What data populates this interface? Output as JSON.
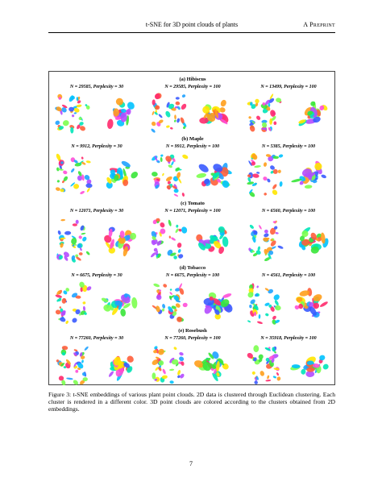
{
  "header": {
    "title": "t-SNE for 3D point clouds of plants",
    "right": "A Preprint"
  },
  "figure": {
    "panels": [
      {
        "title": "(a) Hibiscus",
        "subs": [
          "N = 29585, Perplexity = 30",
          "N = 29585, Perplexity = 100",
          "N = 13499, Perplexity = 100"
        ]
      },
      {
        "title": "(b) Maple",
        "subs": [
          "N = 9912, Perplexity = 30",
          "N = 9912, Perplexity = 100",
          "N = 5385, Perplexity = 100"
        ]
      },
      {
        "title": "(c) Tomato",
        "subs": [
          "N = 12071, Perplexity = 30",
          "N = 12071, Perplexity = 100",
          "N = 6560, Perplexity = 100"
        ]
      },
      {
        "title": "(d) Tobacco",
        "subs": [
          "N = 6675, Perplexity = 30",
          "N = 6675, Perplexity = 100",
          "N = 4561, Perplexity = 100"
        ]
      },
      {
        "title": "(e) Rosebush",
        "subs": [
          "N = 77260, Perplexity = 30",
          "N = 77260, Perplexity = 100",
          "N = 35918, Perplexity = 100"
        ]
      }
    ],
    "caption": "Figure 3: t-SNE embeddings of various plant point clouds. 2D data is clustered through Euclidean clustering. Each cluster is rendered in a different color. 3D point clouds are colored according to the clusters obtained from 2D embeddings."
  },
  "page_number": "7",
  "palette": [
    "#ff2a6d",
    "#ff9f1c",
    "#ffe600",
    "#39e639",
    "#00c2ff",
    "#3a5bff",
    "#b44bff",
    "#ff4fd8",
    "#00e6b8",
    "#ff5e3a",
    "#7cff4f",
    "#1fa2ff"
  ]
}
